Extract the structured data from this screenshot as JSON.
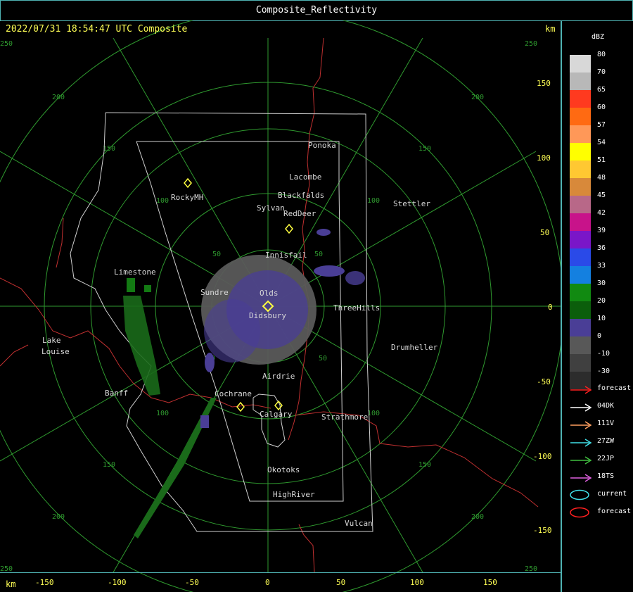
{
  "window_title": "Composite_Reflectivity",
  "timestamp": "2022/07/31 18:54:47 UTC Composite",
  "unit_top": "km",
  "unit_bottom": "km",
  "x_ticks": [
    "-150",
    "-100",
    "-50",
    "0",
    "50",
    "100",
    "150"
  ],
  "y_ticks": [
    "150",
    "100",
    "50",
    "0",
    "-50",
    "-100",
    "-150"
  ],
  "range_ring_labels": [
    "50",
    "100",
    "150",
    "200",
    "250"
  ],
  "cities": [
    {
      "name": "Ponoka"
    },
    {
      "name": "Lacombe"
    },
    {
      "name": "Blackfalds"
    },
    {
      "name": "RockyMH"
    },
    {
      "name": "Sylvan"
    },
    {
      "name": "RedDeer"
    },
    {
      "name": "Stettler"
    },
    {
      "name": "Innisfail"
    },
    {
      "name": "Limestone"
    },
    {
      "name": "Sundre"
    },
    {
      "name": "Olds"
    },
    {
      "name": "Didsbury"
    },
    {
      "name": "ThreeHills"
    },
    {
      "name": "Drumheller"
    },
    {
      "name": "Lake"
    },
    {
      "name": "Louise"
    },
    {
      "name": "Airdrie"
    },
    {
      "name": "Banff"
    },
    {
      "name": "Cochrane"
    },
    {
      "name": "Calgary"
    },
    {
      "name": "Strathmore"
    },
    {
      "name": "Okotoks"
    },
    {
      "name": "HighRiver"
    },
    {
      "name": "Vulcan"
    }
  ],
  "legend": {
    "title": "dBZ",
    "scale": [
      {
        "label": "80",
        "color": "#d8d8d8"
      },
      {
        "label": "70",
        "color": "#b8b8b8"
      },
      {
        "label": "65",
        "color": "#ff3a1f"
      },
      {
        "label": "60",
        "color": "#ff6a12"
      },
      {
        "label": "57",
        "color": "#ff9858"
      },
      {
        "label": "54",
        "color": "#ffff00"
      },
      {
        "label": "51",
        "color": "#ffc832"
      },
      {
        "label": "48",
        "color": "#d8893a"
      },
      {
        "label": "45",
        "color": "#b86888"
      },
      {
        "label": "42",
        "color": "#c8138a"
      },
      {
        "label": "39",
        "color": "#7a16c8"
      },
      {
        "label": "36",
        "color": "#2a4ae8"
      },
      {
        "label": "33",
        "color": "#1480e0"
      },
      {
        "label": "30",
        "color": "#118a11"
      },
      {
        "label": "20",
        "color": "#0b5e0b"
      },
      {
        "label": "10",
        "color": "#4a3e96"
      },
      {
        "label": "0",
        "color": "#585858"
      },
      {
        "label": "-10",
        "color": "#404040"
      },
      {
        "label": "-30",
        "color": "#2c2c2c"
      }
    ],
    "tracks": [
      {
        "label": "forecast",
        "color": "#ff2020"
      },
      {
        "label": "04DK",
        "color": "#ffffff"
      },
      {
        "label": "111V",
        "color": "#ffa060"
      },
      {
        "label": "27ZW",
        "color": "#40e0e8"
      },
      {
        "label": "22JP",
        "color": "#40c040"
      },
      {
        "label": "18TS",
        "color": "#e060e0"
      }
    ],
    "cells": [
      {
        "label": "current",
        "color": "#40e0e8"
      },
      {
        "label": "forecast",
        "color": "#ff2020"
      }
    ]
  }
}
